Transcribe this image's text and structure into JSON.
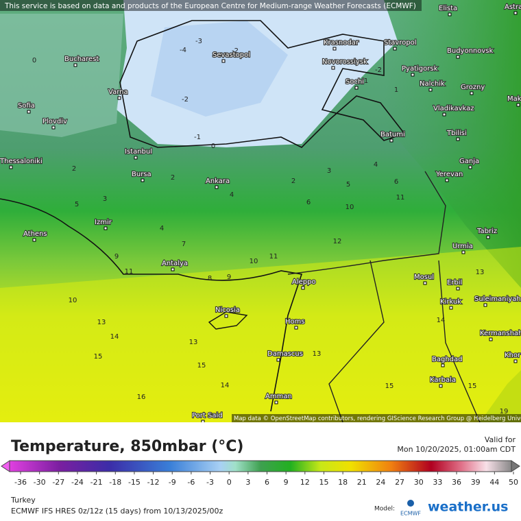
{
  "attribution_top": "This service is based on data and products of the European Centre for Medium-range Weather Forecasts (ECMWF)",
  "map": {
    "cities": [
      "Elista",
      "Astra",
      "Bucharest",
      "Krasnodar",
      "Stavropol",
      "Budyonnovsk",
      "Sevastopol",
      "Novorossiysk",
      "Pyatigorsk",
      "Nalchik",
      "Grozny",
      "Sochi",
      "Varna",
      "Sofia",
      "Makhach",
      "Vladikavkaz",
      "Plovdiv",
      "Batumi",
      "Tbilisi",
      "Istanbul",
      "Thessaloniki",
      "Ganja",
      "Yerevan",
      "Bursa",
      "Ankara",
      "Izmir",
      "Athens",
      "Tabriz",
      "Urmia",
      "Antalya",
      "Mosul",
      "Aleppo",
      "Erbil",
      "Suleimaniyah",
      "Kirkuk",
      "Nicosia",
      "Homs",
      "Kermanshah",
      "Damascus",
      "Khor",
      "Baghdad",
      "Karbala",
      "Amman",
      "Port Said"
    ],
    "contour_labels": [
      "-4",
      "-3",
      "-2",
      "0",
      "-2",
      "-1",
      "0",
      "-2",
      "1",
      "1",
      "2",
      "2",
      "2",
      "3",
      "3",
      "4",
      "4",
      "4",
      "5",
      "5",
      "6",
      "6",
      "7",
      "8",
      "9",
      "9",
      "10",
      "10",
      "10",
      "11",
      "11",
      "11",
      "12",
      "13",
      "13",
      "13",
      "13",
      "14",
      "14",
      "14",
      "15",
      "15",
      "15",
      "15",
      "16",
      "19"
    ],
    "attribution": "Map data © OpenStreetMap contributors, rendering GIScience Research Group @ Heidelberg University"
  },
  "legend": {
    "title": "Temperature, 850mbar (°C)",
    "valid_label": "Valid for",
    "valid_time": "Mon 10/20/2025, 01:00am CDT",
    "ticks": [
      -36,
      -30,
      -27,
      -24,
      -21,
      -18,
      -15,
      -12,
      -9,
      -6,
      -3,
      0,
      3,
      6,
      9,
      12,
      15,
      18,
      21,
      24,
      27,
      30,
      33,
      36,
      39,
      44,
      50
    ],
    "region": "Turkey",
    "model_run": "ECMWF IFS HRES 0z/12z (15 days)  from  10/13/2025/00z",
    "model_label": "Model:",
    "ecmwf": "ECMWF",
    "brand": "weather.us"
  }
}
